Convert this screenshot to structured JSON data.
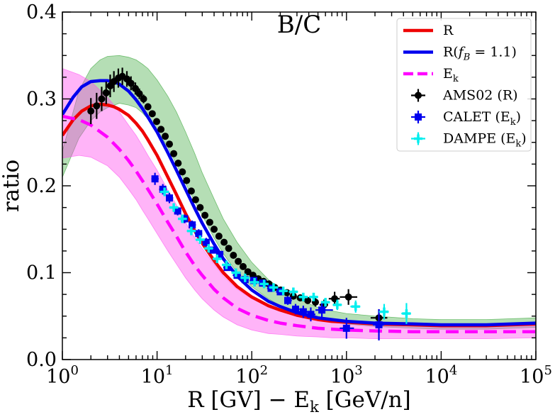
{
  "chart_data": {
    "type": "line",
    "title": "B/C",
    "xlabel": "R [GV]  −  E_k [GeV/n]",
    "ylabel": "ratio",
    "xscale": "log",
    "xlim": [
      1,
      100000
    ],
    "ylim": [
      0,
      0.4
    ],
    "x_tick_labels": [
      {
        "value": 1,
        "base": "10",
        "exp": "0"
      },
      {
        "value": 10,
        "base": "10",
        "exp": "1"
      },
      {
        "value": 100,
        "base": "10",
        "exp": "2"
      },
      {
        "value": 1000,
        "base": "10",
        "exp": "3"
      },
      {
        "value": 10000,
        "base": "10",
        "exp": "4"
      },
      {
        "value": 100000,
        "base": "10",
        "exp": "5"
      }
    ],
    "y_tick_labels": [
      {
        "value": 0.0,
        "label": "0.0"
      },
      {
        "value": 0.1,
        "label": "0.1"
      },
      {
        "value": 0.2,
        "label": "0.2"
      },
      {
        "value": 0.3,
        "label": "0.3"
      },
      {
        "value": 0.4,
        "label": "0.4"
      }
    ],
    "legend_position": "top-right",
    "bands": [
      {
        "name": "R(f_B = 1.1) uncertainty",
        "color": "#2ca02c",
        "opacity": 0.35,
        "x": [
          1,
          1.5,
          2,
          2.5,
          3,
          4,
          5,
          6,
          7,
          8,
          10,
          13,
          16,
          20,
          25,
          30,
          40,
          50,
          70,
          100,
          150,
          200,
          300,
          500,
          700,
          1000,
          2000,
          5000,
          10000,
          30000,
          100000
        ],
        "upper": [
          0.24,
          0.31,
          0.335,
          0.345,
          0.349,
          0.35,
          0.348,
          0.345,
          0.34,
          0.335,
          0.322,
          0.303,
          0.285,
          0.262,
          0.237,
          0.215,
          0.185,
          0.162,
          0.135,
          0.112,
          0.092,
          0.082,
          0.07,
          0.06,
          0.056,
          0.053,
          0.05,
          0.047,
          0.046,
          0.046,
          0.048
        ],
        "lower": [
          0.21,
          0.255,
          0.275,
          0.285,
          0.29,
          0.295,
          0.293,
          0.29,
          0.284,
          0.277,
          0.264,
          0.244,
          0.225,
          0.203,
          0.182,
          0.166,
          0.14,
          0.122,
          0.1,
          0.084,
          0.07,
          0.062,
          0.054,
          0.046,
          0.043,
          0.041,
          0.038,
          0.036,
          0.035,
          0.035,
          0.037
        ]
      },
      {
        "name": "E_k uncertainty",
        "color": "#ff44ee",
        "opacity": 0.4,
        "x": [
          1,
          1.5,
          2,
          3,
          4,
          5,
          6,
          7,
          8,
          10,
          13,
          16,
          20,
          25,
          30,
          40,
          50,
          70,
          100,
          150,
          200,
          300,
          500,
          700,
          1000,
          2000,
          5000,
          10000,
          30000,
          100000
        ],
        "upper": [
          0.335,
          0.328,
          0.32,
          0.302,
          0.285,
          0.27,
          0.258,
          0.246,
          0.235,
          0.218,
          0.195,
          0.178,
          0.158,
          0.14,
          0.128,
          0.11,
          0.096,
          0.081,
          0.07,
          0.061,
          0.057,
          0.052,
          0.048,
          0.046,
          0.045,
          0.043,
          0.041,
          0.04,
          0.039,
          0.039
        ],
        "lower": [
          0.232,
          0.235,
          0.233,
          0.223,
          0.21,
          0.196,
          0.184,
          0.172,
          0.162,
          0.145,
          0.125,
          0.11,
          0.094,
          0.08,
          0.07,
          0.057,
          0.049,
          0.04,
          0.034,
          0.03,
          0.029,
          0.027,
          0.026,
          0.025,
          0.025,
          0.024,
          0.024,
          0.024,
          0.024,
          0.025
        ]
      }
    ],
    "series": [
      {
        "name": "R",
        "label": "R",
        "color": "#ee0000",
        "style": "solid",
        "x": [
          1,
          1.3,
          1.6,
          2,
          2.5,
          3,
          3.5,
          4,
          5,
          6,
          7,
          8,
          10,
          13,
          16,
          20,
          25,
          30,
          40,
          50,
          70,
          100,
          150,
          200,
          300,
          500,
          700,
          1000,
          2000,
          5000,
          10000,
          30000,
          100000
        ],
        "y": [
          0.258,
          0.276,
          0.286,
          0.292,
          0.294,
          0.293,
          0.291,
          0.288,
          0.281,
          0.272,
          0.263,
          0.253,
          0.235,
          0.21,
          0.19,
          0.168,
          0.148,
          0.134,
          0.114,
          0.1,
          0.084,
          0.072,
          0.062,
          0.057,
          0.051,
          0.046,
          0.044,
          0.043,
          0.041,
          0.04,
          0.039,
          0.039,
          0.041
        ]
      },
      {
        "name": "R(f_B = 1.1)",
        "label": "R(f",
        "sub": "B",
        "suffix": " = 1.1)",
        "color": "#0000ee",
        "style": "solid",
        "x": [
          1,
          1.3,
          1.6,
          2,
          2.5,
          3,
          3.5,
          4,
          5,
          6,
          7,
          8,
          10,
          13,
          16,
          20,
          25,
          30,
          40,
          50,
          70,
          100,
          150,
          200,
          300,
          500,
          700,
          1000,
          2000,
          5000,
          10000,
          30000,
          100000
        ],
        "y": [
          0.282,
          0.302,
          0.314,
          0.32,
          0.321,
          0.321,
          0.32,
          0.317,
          0.309,
          0.299,
          0.289,
          0.279,
          0.262,
          0.238,
          0.218,
          0.196,
          0.174,
          0.157,
          0.133,
          0.116,
          0.096,
          0.08,
          0.067,
          0.061,
          0.054,
          0.048,
          0.046,
          0.044,
          0.042,
          0.041,
          0.04,
          0.04,
          0.042
        ]
      },
      {
        "name": "E_k",
        "label": "E",
        "sub": "k",
        "suffix": "",
        "color": "#ff00ff",
        "style": "dashed",
        "x": [
          1,
          1.5,
          2,
          3,
          4,
          5,
          6,
          7,
          8,
          10,
          13,
          16,
          20,
          25,
          30,
          40,
          50,
          70,
          100,
          150,
          200,
          300,
          500,
          700,
          1000,
          2000,
          5000,
          10000,
          30000,
          100000
        ],
        "y": [
          0.28,
          0.276,
          0.27,
          0.256,
          0.242,
          0.229,
          0.217,
          0.206,
          0.196,
          0.179,
          0.158,
          0.142,
          0.124,
          0.108,
          0.097,
          0.081,
          0.071,
          0.059,
          0.051,
          0.045,
          0.042,
          0.039,
          0.036,
          0.035,
          0.034,
          0.033,
          0.032,
          0.032,
          0.032,
          0.032
        ]
      }
    ],
    "datasets": [
      {
        "name": "AMS02 (R)",
        "label": "AMS02 (R)",
        "color": "#000000",
        "marker": "circle",
        "x": [
          2.0,
          2.3,
          2.6,
          2.9,
          3.2,
          3.5,
          3.9,
          4.3,
          4.8,
          5.3,
          5.9,
          6.5,
          7.2,
          8.0,
          8.9,
          9.9,
          11,
          12.2,
          13.5,
          15,
          16.7,
          18.5,
          20.5,
          23,
          25.5,
          28.5,
          32,
          36,
          40,
          45,
          51,
          57,
          64,
          72,
          81,
          91,
          103,
          117,
          133,
          152,
          175,
          202,
          235,
          275,
          325,
          390,
          470,
          580,
          750,
          1050,
          2200
        ],
        "y": [
          0.286,
          0.292,
          0.3,
          0.307,
          0.315,
          0.32,
          0.324,
          0.326,
          0.323,
          0.318,
          0.312,
          0.306,
          0.3,
          0.291,
          0.283,
          0.274,
          0.265,
          0.257,
          0.248,
          0.237,
          0.226,
          0.216,
          0.206,
          0.194,
          0.184,
          0.175,
          0.166,
          0.158,
          0.15,
          0.142,
          0.135,
          0.128,
          0.12,
          0.113,
          0.107,
          0.101,
          0.097,
          0.093,
          0.09,
          0.087,
          0.083,
          0.08,
          0.077,
          0.073,
          0.071,
          0.068,
          0.066,
          0.063,
          0.07,
          0.072,
          0.048
        ],
        "yerr": [
          0.015,
          0.015,
          0.014,
          0.013,
          0.013,
          0.012,
          0.011,
          0.01,
          0.009,
          0.008,
          0.007,
          0.006,
          0.005,
          0.004,
          0.003,
          0.003,
          0.003,
          0.003,
          0.003,
          0.003,
          0.003,
          0.003,
          0.003,
          0.003,
          0.003,
          0.003,
          0.003,
          0.003,
          0.003,
          0.003,
          0.003,
          0.003,
          0.003,
          0.003,
          0.003,
          0.003,
          0.003,
          0.003,
          0.003,
          0.003,
          0.003,
          0.003,
          0.003,
          0.004,
          0.004,
          0.004,
          0.005,
          0.006,
          0.008,
          0.009,
          0.01
        ],
        "xlo": [
          1.9,
          2.2,
          2.5,
          2.8,
          3.1,
          3.4,
          3.8,
          4.2,
          4.6,
          5.1,
          5.7,
          6.3,
          7.0,
          7.7,
          8.6,
          9.6,
          10.6,
          11.8,
          13.0,
          14.5,
          16.1,
          17.8,
          19.8,
          22.2,
          24.6,
          27.5,
          31,
          34.5,
          38.5,
          43,
          49,
          55,
          61,
          69,
          78,
          87,
          98,
          112,
          127,
          145,
          165,
          190,
          220,
          255,
          300,
          360,
          430,
          520,
          650,
          850,
          1800
        ],
        "xhi": [
          2.1,
          2.4,
          2.7,
          3.0,
          3.3,
          3.7,
          4.1,
          4.5,
          5.0,
          5.5,
          6.1,
          6.8,
          7.5,
          8.3,
          9.2,
          10.3,
          11.4,
          12.7,
          14.0,
          15.5,
          17.3,
          19.2,
          21.3,
          23.8,
          26.5,
          29.5,
          33,
          37.5,
          42,
          47,
          53,
          59,
          67,
          75,
          84,
          95,
          108,
          122,
          140,
          160,
          185,
          215,
          250,
          295,
          350,
          420,
          510,
          640,
          850,
          1300,
          2700
        ]
      },
      {
        "name": "CALET (E_k)",
        "label": "CALET (E",
        "sub": "k",
        "suffix": ")",
        "color": "#0000ee",
        "marker": "square",
        "x": [
          9.5,
          11.5,
          13.5,
          16.5,
          19.5,
          23.5,
          27.5,
          33,
          39,
          46,
          55,
          70,
          85,
          105,
          130,
          160,
          200,
          240,
          290,
          350,
          420,
          550,
          1000,
          2200
        ],
        "y": [
          0.208,
          0.196,
          0.186,
          0.171,
          0.162,
          0.155,
          0.145,
          0.135,
          0.126,
          0.121,
          0.106,
          0.097,
          0.092,
          0.091,
          0.088,
          0.082,
          0.078,
          0.068,
          0.058,
          0.055,
          0.052,
          0.057,
          0.036,
          0.04
        ],
        "yerr": [
          0.007,
          0.006,
          0.006,
          0.005,
          0.005,
          0.005,
          0.005,
          0.005,
          0.004,
          0.004,
          0.004,
          0.004,
          0.004,
          0.004,
          0.004,
          0.004,
          0.004,
          0.005,
          0.006,
          0.007,
          0.008,
          0.009,
          0.012,
          0.018
        ],
        "xlo": [
          8.7,
          10.5,
          12.4,
          15,
          17.8,
          21.5,
          25,
          30,
          35.5,
          42,
          50,
          63,
          77,
          95,
          118,
          145,
          180,
          220,
          265,
          315,
          380,
          470,
          850,
          1900
        ],
        "xhi": [
          10.4,
          12.6,
          14.8,
          18,
          21.3,
          25.7,
          30,
          36,
          42.5,
          50,
          60,
          77,
          93,
          115,
          143,
          176,
          220,
          265,
          320,
          390,
          470,
          720,
          1200,
          2500
        ]
      },
      {
        "name": "DAMPE (E_k)",
        "label": "DAMPE (E",
        "sub": "k",
        "suffix": ")",
        "color": "#00eeee",
        "marker": "plus",
        "x": [
          12,
          15,
          18.5,
          23,
          28.5,
          35,
          43,
          54,
          68,
          85,
          107,
          135,
          170,
          215,
          275,
          350,
          450,
          600,
          800,
          1250,
          2500,
          4300
        ],
        "y": [
          0.193,
          0.175,
          0.162,
          0.148,
          0.138,
          0.128,
          0.116,
          0.109,
          0.1,
          0.094,
          0.089,
          0.087,
          0.083,
          0.079,
          0.078,
          0.072,
          0.072,
          0.066,
          0.063,
          0.061,
          0.055,
          0.053
        ],
        "yerr": [
          0.005,
          0.005,
          0.004,
          0.004,
          0.004,
          0.004,
          0.003,
          0.003,
          0.003,
          0.003,
          0.003,
          0.003,
          0.003,
          0.003,
          0.003,
          0.004,
          0.004,
          0.005,
          0.006,
          0.007,
          0.009,
          0.012
        ],
        "xlo": [
          10.7,
          13.4,
          16.6,
          20.6,
          25.5,
          31.3,
          38.5,
          48.3,
          61,
          76,
          96,
          121,
          152,
          193,
          246,
          313,
          403,
          537,
          716,
          1100,
          2200,
          3800
        ],
        "xhi": [
          13.4,
          16.8,
          20.7,
          25.7,
          31.9,
          39.1,
          48.1,
          60.4,
          76,
          95,
          120,
          151,
          190,
          241,
          308,
          392,
          503,
          671,
          895,
          1400,
          2800,
          4800
        ]
      }
    ]
  }
}
